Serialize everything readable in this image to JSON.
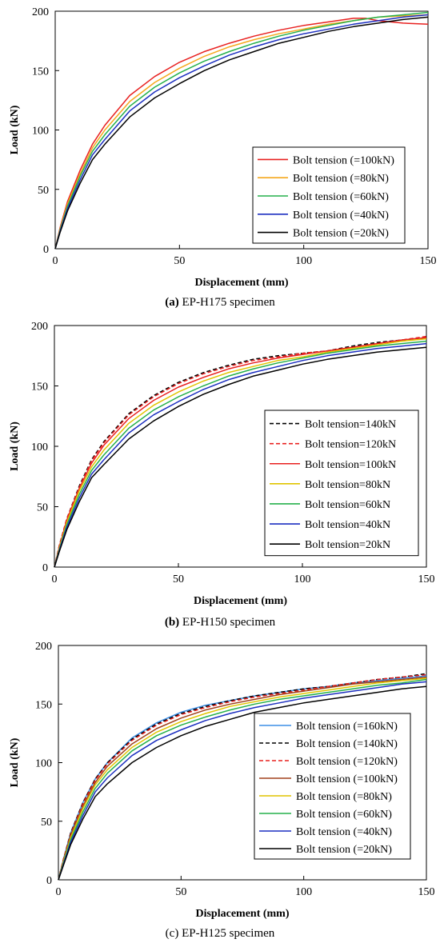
{
  "chart_data": [
    {
      "type": "line",
      "caption_letter": "(a)",
      "caption_rest": " EP-H175 specimen",
      "xlabel": "Displacement (mm)",
      "ylabel": "Load (kN)",
      "xlim": [
        0,
        150
      ],
      "ylim": [
        0,
        200
      ],
      "xticks": [
        0,
        50,
        100,
        150
      ],
      "yticks": [
        0,
        50,
        100,
        150,
        200
      ],
      "grid": false,
      "legend_position": "bottom-right",
      "series": [
        {
          "name": "Bolt tension (=100kN)",
          "color": "#e8201f",
          "dash": "solid",
          "x": [
            0,
            2,
            5,
            10,
            15,
            20,
            30,
            40,
            50,
            60,
            70,
            80,
            90,
            100,
            110,
            120,
            125,
            130,
            140,
            150
          ],
          "y": [
            0,
            18,
            40,
            66,
            88,
            104,
            129,
            145,
            157,
            166,
            173,
            179,
            184,
            188,
            191,
            194,
            194,
            192,
            190,
            189
          ]
        },
        {
          "name": "Bolt tension (=80kN)",
          "color": "#f5a81c",
          "dash": "solid",
          "x": [
            0,
            2,
            5,
            10,
            15,
            20,
            30,
            40,
            50,
            60,
            70,
            80,
            90,
            100,
            110,
            120,
            130,
            140,
            150
          ],
          "y": [
            0,
            17,
            38,
            63,
            85,
            100,
            124,
            140,
            152,
            162,
            170,
            176,
            181,
            185,
            189,
            192,
            195,
            196,
            197
          ]
        },
        {
          "name": "Bolt tension (=60kN)",
          "color": "#25b04b",
          "dash": "solid",
          "x": [
            0,
            2,
            5,
            10,
            15,
            20,
            30,
            40,
            50,
            60,
            70,
            80,
            90,
            100,
            110,
            120,
            130,
            140,
            150
          ],
          "y": [
            0,
            16,
            36,
            61,
            82,
            96,
            120,
            136,
            148,
            158,
            166,
            173,
            179,
            184,
            188,
            192,
            195,
            197,
            199
          ]
        },
        {
          "name": "Bolt tension (=40kN)",
          "color": "#1c2fc0",
          "dash": "solid",
          "x": [
            0,
            2,
            5,
            10,
            15,
            20,
            30,
            40,
            50,
            60,
            70,
            80,
            90,
            100,
            110,
            120,
            130,
            140,
            150
          ],
          "y": [
            0,
            15,
            34,
            58,
            79,
            92,
            116,
            132,
            144,
            154,
            163,
            170,
            176,
            181,
            185,
            189,
            192,
            195,
            197
          ]
        },
        {
          "name": "Bolt tension (=20kN)",
          "color": "#000000",
          "dash": "solid",
          "x": [
            0,
            2,
            5,
            10,
            15,
            20,
            30,
            40,
            50,
            60,
            70,
            80,
            90,
            100,
            110,
            120,
            130,
            140,
            150
          ],
          "y": [
            0,
            14,
            32,
            55,
            75,
            88,
            111,
            127,
            139,
            150,
            159,
            166,
            173,
            178,
            183,
            187,
            190,
            193,
            195
          ]
        }
      ]
    },
    {
      "type": "line",
      "caption_letter": "(b)",
      "caption_rest": " EP-H150 specimen",
      "xlabel": "Displacement (mm)",
      "ylabel": "Load (kN)",
      "xlim": [
        0,
        150
      ],
      "ylim": [
        0,
        200
      ],
      "xticks": [
        0,
        50,
        100,
        150
      ],
      "yticks": [
        0,
        50,
        100,
        150,
        200
      ],
      "grid": false,
      "legend_position": "bottom-right",
      "series": [
        {
          "name": "Bolt tension=140kN",
          "color": "#000000",
          "dash": "dashed",
          "x": [
            0,
            2,
            5,
            10,
            15,
            20,
            30,
            40,
            50,
            60,
            70,
            80,
            90,
            100,
            110,
            120,
            130,
            140,
            150
          ],
          "y": [
            0,
            18,
            40,
            67,
            89,
            104,
            127,
            142,
            153,
            161,
            167,
            172,
            175,
            177,
            179,
            183,
            186,
            188,
            190
          ]
        },
        {
          "name": "Bolt tension=120kN",
          "color": "#e8201f",
          "dash": "dashed",
          "x": [
            0,
            2,
            5,
            10,
            15,
            20,
            30,
            40,
            50,
            60,
            70,
            80,
            90,
            100,
            110,
            120,
            130,
            140,
            150
          ],
          "y": [
            0,
            18,
            40,
            66,
            88,
            103,
            126,
            141,
            152,
            160,
            166,
            171,
            174,
            177,
            179,
            182,
            185,
            188,
            191
          ]
        },
        {
          "name": "Bolt tension=100kN",
          "color": "#e8201f",
          "dash": "solid",
          "x": [
            0,
            2,
            5,
            10,
            15,
            20,
            30,
            40,
            50,
            60,
            70,
            80,
            90,
            100,
            110,
            120,
            130,
            140,
            150
          ],
          "y": [
            0,
            17,
            39,
            65,
            86,
            101,
            123,
            138,
            149,
            157,
            164,
            169,
            173,
            176,
            179,
            182,
            185,
            188,
            190
          ]
        },
        {
          "name": "Bolt tension=80kN",
          "color": "#e0c400",
          "dash": "solid",
          "x": [
            0,
            2,
            5,
            10,
            15,
            20,
            30,
            40,
            50,
            60,
            70,
            80,
            90,
            100,
            110,
            120,
            130,
            140,
            150
          ],
          "y": [
            0,
            16,
            37,
            63,
            83,
            97,
            119,
            134,
            145,
            154,
            161,
            166,
            171,
            174,
            178,
            181,
            184,
            187,
            189
          ]
        },
        {
          "name": "Bolt tension=60kN",
          "color": "#25b04b",
          "dash": "solid",
          "x": [
            0,
            2,
            5,
            10,
            15,
            20,
            30,
            40,
            50,
            60,
            70,
            80,
            90,
            100,
            110,
            120,
            130,
            140,
            150
          ],
          "y": [
            0,
            15,
            35,
            60,
            80,
            93,
            115,
            130,
            141,
            150,
            158,
            164,
            169,
            173,
            177,
            180,
            183,
            185,
            187
          ]
        },
        {
          "name": "Bolt tension=40kN",
          "color": "#1c2fc0",
          "dash": "solid",
          "x": [
            0,
            2,
            5,
            10,
            15,
            20,
            30,
            40,
            50,
            60,
            70,
            80,
            90,
            100,
            110,
            120,
            130,
            140,
            150
          ],
          "y": [
            0,
            14,
            33,
            57,
            77,
            89,
            111,
            126,
            137,
            147,
            155,
            161,
            166,
            171,
            175,
            178,
            181,
            183,
            185
          ]
        },
        {
          "name": "Bolt tension=20kN",
          "color": "#000000",
          "dash": "solid",
          "x": [
            0,
            2,
            5,
            10,
            15,
            20,
            30,
            40,
            50,
            60,
            70,
            80,
            90,
            100,
            110,
            120,
            130,
            140,
            150
          ],
          "y": [
            0,
            13,
            31,
            54,
            74,
            85,
            106,
            121,
            133,
            143,
            151,
            158,
            163,
            168,
            172,
            175,
            178,
            180,
            182
          ]
        }
      ]
    },
    {
      "type": "line",
      "caption_letter": "",
      "caption_rest": "(c) EP-H125 specimen",
      "xlabel": "Displacement (mm)",
      "ylabel": "Load (kN)",
      "xlim": [
        0,
        150
      ],
      "ylim": [
        0,
        200
      ],
      "xticks": [
        0,
        50,
        100,
        150
      ],
      "yticks": [
        0,
        50,
        100,
        150,
        200
      ],
      "grid": false,
      "legend_position": "bottom-right",
      "series": [
        {
          "name": "Bolt tension (=160kN)",
          "color": "#3d8fe6",
          "dash": "solid",
          "x": [
            0,
            2,
            5,
            10,
            15,
            20,
            30,
            40,
            50,
            60,
            70,
            80,
            90,
            100,
            110,
            120,
            130,
            140,
            150
          ],
          "y": [
            0,
            17,
            40,
            66,
            86,
            100,
            121,
            134,
            143,
            149,
            153,
            157,
            160,
            163,
            165,
            168,
            170,
            172,
            174
          ]
        },
        {
          "name": "Bolt tension (=140kN)",
          "color": "#000000",
          "dash": "dashed",
          "x": [
            0,
            2,
            5,
            10,
            15,
            20,
            30,
            40,
            50,
            60,
            70,
            80,
            90,
            100,
            110,
            120,
            130,
            140,
            150
          ],
          "y": [
            0,
            17,
            40,
            66,
            86,
            100,
            120,
            133,
            142,
            148,
            153,
            157,
            160,
            163,
            165,
            168,
            171,
            173,
            176
          ]
        },
        {
          "name": "Bolt tension (=120kN)",
          "color": "#e8201f",
          "dash": "dashed",
          "x": [
            0,
            2,
            5,
            10,
            15,
            20,
            30,
            40,
            50,
            60,
            70,
            80,
            90,
            100,
            110,
            120,
            130,
            140,
            150
          ],
          "y": [
            0,
            17,
            39,
            65,
            85,
            99,
            119,
            132,
            141,
            147,
            152,
            156,
            159,
            162,
            165,
            168,
            171,
            173,
            175
          ]
        },
        {
          "name": "Bolt tension (=100kN)",
          "color": "#a0401c",
          "dash": "solid",
          "x": [
            0,
            2,
            5,
            10,
            15,
            20,
            30,
            40,
            50,
            60,
            70,
            80,
            90,
            100,
            110,
            120,
            130,
            140,
            150
          ],
          "y": [
            0,
            16,
            38,
            63,
            83,
            97,
            116,
            129,
            138,
            145,
            150,
            154,
            158,
            161,
            164,
            167,
            169,
            171,
            173
          ]
        },
        {
          "name": "Bolt tension (=80kN)",
          "color": "#e0c400",
          "dash": "solid",
          "x": [
            0,
            2,
            5,
            10,
            15,
            20,
            30,
            40,
            50,
            60,
            70,
            80,
            90,
            100,
            110,
            120,
            130,
            140,
            150
          ],
          "y": [
            0,
            15,
            36,
            61,
            81,
            94,
            113,
            126,
            135,
            142,
            148,
            152,
            156,
            159,
            162,
            165,
            168,
            170,
            172
          ]
        },
        {
          "name": "Bolt tension (=60kN)",
          "color": "#25b04b",
          "dash": "solid",
          "x": [
            0,
            2,
            5,
            10,
            15,
            20,
            30,
            40,
            50,
            60,
            70,
            80,
            90,
            100,
            110,
            120,
            130,
            140,
            150
          ],
          "y": [
            0,
            14,
            34,
            58,
            78,
            91,
            110,
            123,
            132,
            139,
            145,
            150,
            154,
            157,
            160,
            163,
            166,
            168,
            171
          ]
        },
        {
          "name": "Bolt tension (=40kN)",
          "color": "#1c2fc0",
          "dash": "solid",
          "x": [
            0,
            2,
            5,
            10,
            15,
            20,
            30,
            40,
            50,
            60,
            70,
            80,
            90,
            100,
            110,
            120,
            130,
            140,
            150
          ],
          "y": [
            0,
            13,
            32,
            55,
            75,
            87,
            106,
            119,
            128,
            136,
            142,
            147,
            151,
            155,
            158,
            161,
            164,
            167,
            169
          ]
        },
        {
          "name": "Bolt tension (=20kN)",
          "color": "#000000",
          "dash": "solid",
          "x": [
            0,
            2,
            5,
            10,
            15,
            20,
            30,
            40,
            50,
            60,
            70,
            80,
            90,
            100,
            110,
            120,
            130,
            140,
            150
          ],
          "y": [
            0,
            12,
            30,
            52,
            71,
            82,
            100,
            113,
            123,
            131,
            137,
            143,
            147,
            151,
            154,
            157,
            160,
            163,
            165
          ]
        }
      ]
    }
  ]
}
